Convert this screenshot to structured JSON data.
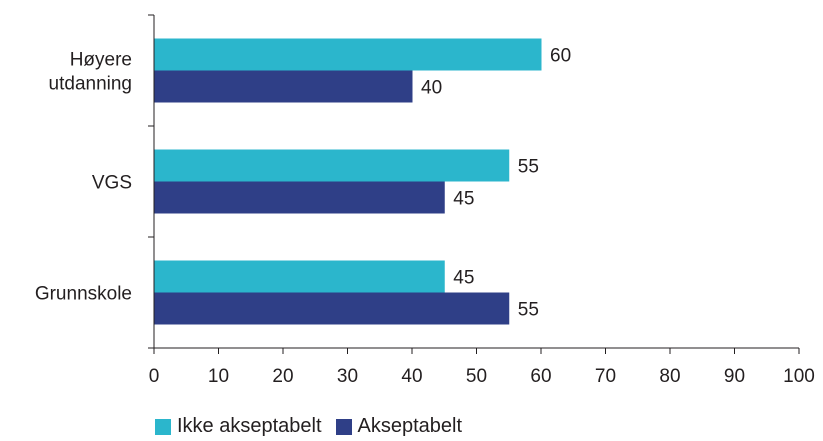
{
  "chart_data": {
    "type": "bar",
    "orientation": "horizontal",
    "categories": [
      "Høyere utdanning",
      "VGS",
      "Grunnskole"
    ],
    "category_lines": [
      [
        "Høyere",
        "utdanning"
      ],
      [
        "VGS"
      ],
      [
        "Grunnskole"
      ]
    ],
    "series": [
      {
        "name": "Ikke akseptabelt",
        "values": [
          60,
          55,
          45
        ],
        "color": "#2bb6cc"
      },
      {
        "name": "Akseptabelt",
        "values": [
          40,
          45,
          55
        ],
        "color": "#2f3f87"
      }
    ],
    "xlim": [
      0,
      100
    ],
    "xticks": [
      0,
      10,
      20,
      30,
      40,
      50,
      60,
      70,
      80,
      90,
      100
    ],
    "data_labels": true,
    "legend_position": "bottom",
    "grid": false
  }
}
